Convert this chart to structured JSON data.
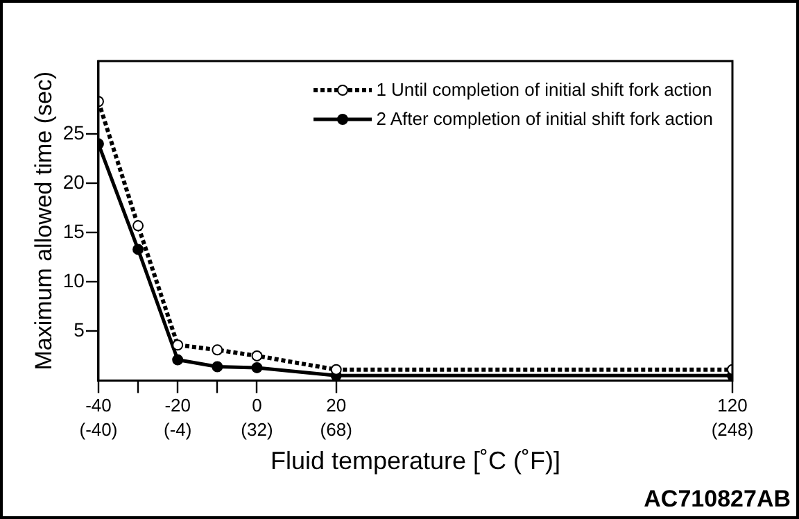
{
  "chart_data": {
    "type": "line",
    "xlabel": "Fluid temperature [˚C (˚F)]",
    "ylabel": "Maximum allowed time (sec)",
    "x": [
      -40,
      -30,
      -20,
      -10,
      0,
      20,
      120
    ],
    "series": [
      {
        "name": "1 Until completion of initial shift fork action",
        "color": "#000000",
        "values": [
          28.3,
          15.7,
          3.6,
          3.1,
          2.5,
          1.1,
          1.1
        ],
        "line_style": "dotted",
        "marker": "circle"
      },
      {
        "name": "2 After completion of initial shift fork action",
        "color": "#000000",
        "values": [
          24,
          13.3,
          2.1,
          1.4,
          1.3,
          0.5,
          0.5
        ],
        "line_style": "solid",
        "marker": "circle"
      }
    ],
    "xlim": [
      -40,
      120
    ],
    "xticks": [
      -40,
      {
        "value": -30,
        "label": null
      },
      -20,
      {
        "value": -10,
        "label": null
      },
      0,
      20,
      120
    ],
    "x2lim": [
      -40,
      248
    ],
    "x2ticks": [
      {
        "value": -40,
        "label": "(-40)"
      },
      {
        "value": -4,
        "label": "(-4)"
      },
      {
        "value": 32,
        "label": "(32)"
      },
      {
        "value": 68,
        "label": "(68)"
      },
      {
        "value": 248,
        "label": "(248)"
      }
    ],
    "ylim": [
      0,
      32.4
    ],
    "yticks": [
      5,
      10,
      15,
      20,
      25
    ],
    "grid": false,
    "legend": "top right",
    "annotations": [
      "AC710827AB"
    ]
  }
}
